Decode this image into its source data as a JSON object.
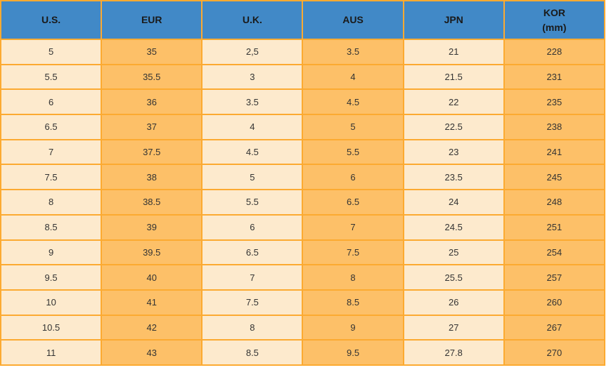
{
  "colors": {
    "header_bg": "#4189C7",
    "cell_light": "#FDEACD",
    "cell_orange": "#FDC068",
    "grid": "#FCAA31",
    "header_text": "#1A1A1A",
    "cell_text": "#333333"
  },
  "chart_data": {
    "type": "table",
    "description": "Shoe size conversion table across regions",
    "columns": [
      {
        "label": "U.S.",
        "sub": "",
        "tone": "light"
      },
      {
        "label": "EUR",
        "sub": "",
        "tone": "orange"
      },
      {
        "label": "U.K.",
        "sub": "",
        "tone": "light"
      },
      {
        "label": "AUS",
        "sub": "",
        "tone": "orange"
      },
      {
        "label": "JPN",
        "sub": "",
        "tone": "light"
      },
      {
        "label": "KOR",
        "sub": "(mm)",
        "tone": "orange"
      }
    ],
    "rows": [
      [
        "5",
        "35",
        "2,5",
        "3.5",
        "21",
        "228"
      ],
      [
        "5.5",
        "35.5",
        "3",
        "4",
        "21.5",
        "231"
      ],
      [
        "6",
        "36",
        "3.5",
        "4.5",
        "22",
        "235"
      ],
      [
        "6.5",
        "37",
        "4",
        "5",
        "22.5",
        "238"
      ],
      [
        "7",
        "37.5",
        "4.5",
        "5.5",
        "23",
        "241"
      ],
      [
        "7.5",
        "38",
        "5",
        "6",
        "23.5",
        "245"
      ],
      [
        "8",
        "38.5",
        "5.5",
        "6.5",
        "24",
        "248"
      ],
      [
        "8.5",
        "39",
        "6",
        "7",
        "24.5",
        "251"
      ],
      [
        "9",
        "39.5",
        "6.5",
        "7.5",
        "25",
        "254"
      ],
      [
        "9.5",
        "40",
        "7",
        "8",
        "25.5",
        "257"
      ],
      [
        "10",
        "41",
        "7.5",
        "8.5",
        "26",
        "260"
      ],
      [
        "10.5",
        "42",
        "8",
        "9",
        "27",
        "267"
      ],
      [
        "11",
        "43",
        "8.5",
        "9.5",
        "27.8",
        "270"
      ]
    ]
  }
}
